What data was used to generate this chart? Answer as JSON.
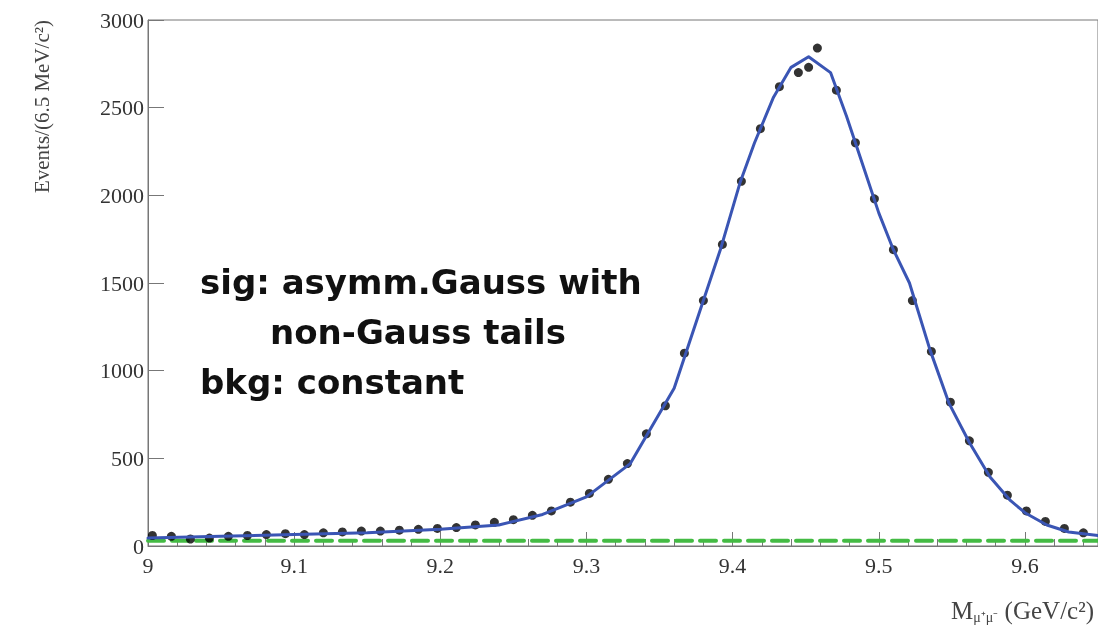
{
  "chart_data": {
    "type": "scatter",
    "xlabel": "M$_{μ⁺μ⁻}$ (GeV/c²)",
    "ylabel": "Events/(6.5 MeV/c²)",
    "annotations": [
      "sig: asymm.Gauss with",
      "non-Gauss tails",
      "bkg: constant"
    ],
    "xlim": [
      9,
      9.65
    ],
    "xticks": [
      9,
      9.1,
      9.2,
      9.3,
      9.4,
      9.5,
      9.6
    ],
    "ylim": [
      0,
      3000
    ],
    "yticks": [
      0,
      500,
      1000,
      1500,
      2000,
      2500,
      3000
    ],
    "grid": false,
    "series": [
      {
        "marker": "circle",
        "color": "#000000",
        "x": [
          9.003,
          9.016,
          9.029,
          9.042,
          9.055,
          9.068,
          9.081,
          9.094,
          9.107,
          9.12,
          9.133,
          9.146,
          9.159,
          9.172,
          9.185,
          9.198,
          9.211,
          9.224,
          9.237,
          9.25,
          9.263,
          9.276,
          9.289,
          9.302,
          9.315,
          9.328,
          9.341,
          9.354,
          9.367,
          9.38,
          9.393,
          9.406,
          9.419,
          9.432,
          9.445,
          9.452,
          9.458,
          9.471,
          9.484,
          9.497,
          9.51,
          9.523,
          9.536,
          9.549,
          9.562,
          9.575,
          9.588,
          9.601,
          9.614,
          9.627,
          9.64
        ],
        "values": [
          60,
          55,
          40,
          45,
          55,
          60,
          65,
          70,
          65,
          75,
          80,
          85,
          85,
          90,
          95,
          100,
          105,
          120,
          135,
          150,
          175,
          200,
          250,
          300,
          380,
          470,
          640,
          800,
          1100,
          1400,
          1720,
          2080,
          2380,
          2620,
          2700,
          2730,
          2840,
          2600,
          2300,
          1980,
          1690,
          1400,
          1110,
          820,
          600,
          420,
          290,
          200,
          140,
          100,
          75
        ]
      },
      {
        "type": "line",
        "marker": "none",
        "line_style": "solid",
        "color": "#3a55b4",
        "x": [
          9.0,
          9.05,
          9.1,
          9.15,
          9.2,
          9.24,
          9.27,
          9.3,
          9.33,
          9.36,
          9.376,
          9.392,
          9.405,
          9.415,
          9.428,
          9.44,
          9.452,
          9.467,
          9.478,
          9.49,
          9.5,
          9.51,
          9.521,
          9.535,
          9.548,
          9.562,
          9.576,
          9.59,
          9.6,
          9.615,
          9.63,
          9.65
        ],
        "values": [
          45,
          55,
          65,
          75,
          95,
          120,
          180,
          280,
          470,
          900,
          1300,
          1700,
          2070,
          2300,
          2560,
          2730,
          2790,
          2700,
          2450,
          2150,
          1900,
          1690,
          1500,
          1120,
          815,
          590,
          395,
          260,
          190,
          120,
          80,
          60
        ]
      },
      {
        "type": "line",
        "marker": "none",
        "line_style": "dashed",
        "color": "#44bb44",
        "x": [
          9.0,
          9.65
        ],
        "values": [
          30,
          30
        ]
      }
    ]
  }
}
